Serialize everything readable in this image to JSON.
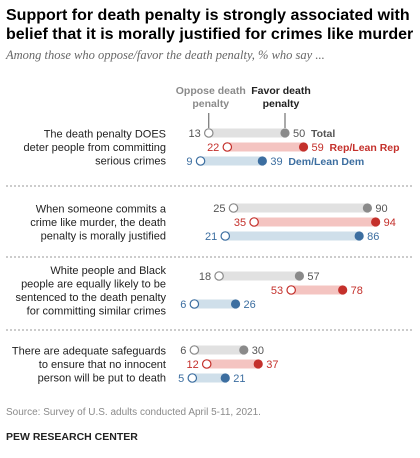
{
  "title": "Support for death penalty is strongly associated with belief that it is morally justified for crimes like murder",
  "subtitle": "Among those who oppose/favor the death penalty, % who say ...",
  "legend": {
    "oppose": "Oppose death penalty",
    "favor": "Favor death penalty"
  },
  "source": "Source: Survey of U.S. adults conducted April 5-11, 2021.",
  "brand": "PEW RESEARCH CENTER",
  "colors": {
    "total": "#8a8a8a",
    "total_bar": "#e1e1e1",
    "rep": "#c4302b",
    "rep_bar": "#f4c4c1",
    "dem": "#3c6ea0",
    "dem_bar": "#cfdfea",
    "rep_text": "#c4302b",
    "dem_text": "#3c6ea0"
  },
  "chart_data": {
    "type": "dot",
    "xlim": [
      0,
      100
    ],
    "series_names": [
      "Total",
      "Rep/Lean Rep",
      "Dem/Lean Dem"
    ],
    "categories": [
      {
        "label": "The death penalty DOES deter people from committing serious crimes",
        "lines": [
          "The death penalty DOES",
          "deter people from committing",
          "serious crimes"
        ],
        "rows": [
          {
            "series": "Total",
            "oppose": 13,
            "favor": 50
          },
          {
            "series": "Rep/Lean Rep",
            "oppose": 22,
            "favor": 59
          },
          {
            "series": "Dem/Lean Dem",
            "oppose": 9,
            "favor": 39
          }
        ]
      },
      {
        "label": "When someone commits a crime like murder, the death penalty is morally justified",
        "lines": [
          "When someone commits a",
          "crime like murder, the death",
          "penalty is morally justified"
        ],
        "rows": [
          {
            "series": "Total",
            "oppose": 25,
            "favor": 90
          },
          {
            "series": "Rep/Lean Rep",
            "oppose": 35,
            "favor": 94
          },
          {
            "series": "Dem/Lean Dem",
            "oppose": 21,
            "favor": 86
          }
        ]
      },
      {
        "label": "White people and Black people are equally likely to be sentenced to the death penalty for committing similar crimes",
        "lines": [
          "White people and Black",
          "people are equally likely to be",
          "sentenced to the death penalty",
          "for committing similar crimes"
        ],
        "rows": [
          {
            "series": "Total",
            "oppose": 18,
            "favor": 57
          },
          {
            "series": "Rep/Lean Rep",
            "oppose": 53,
            "favor": 78
          },
          {
            "series": "Dem/Lean Dem",
            "oppose": 6,
            "favor": 26
          }
        ]
      },
      {
        "label": "There are adequate safeguards to ensure that no innocent person will be put to death",
        "lines": [
          "There are adequate safeguards",
          "to ensure that no innocent",
          "person will be put to death"
        ],
        "rows": [
          {
            "series": "Total",
            "oppose": 6,
            "favor": 30
          },
          {
            "series": "Rep/Lean Rep",
            "oppose": 12,
            "favor": 37
          },
          {
            "series": "Dem/Lean Dem",
            "oppose": 5,
            "favor": 21
          }
        ]
      }
    ]
  }
}
